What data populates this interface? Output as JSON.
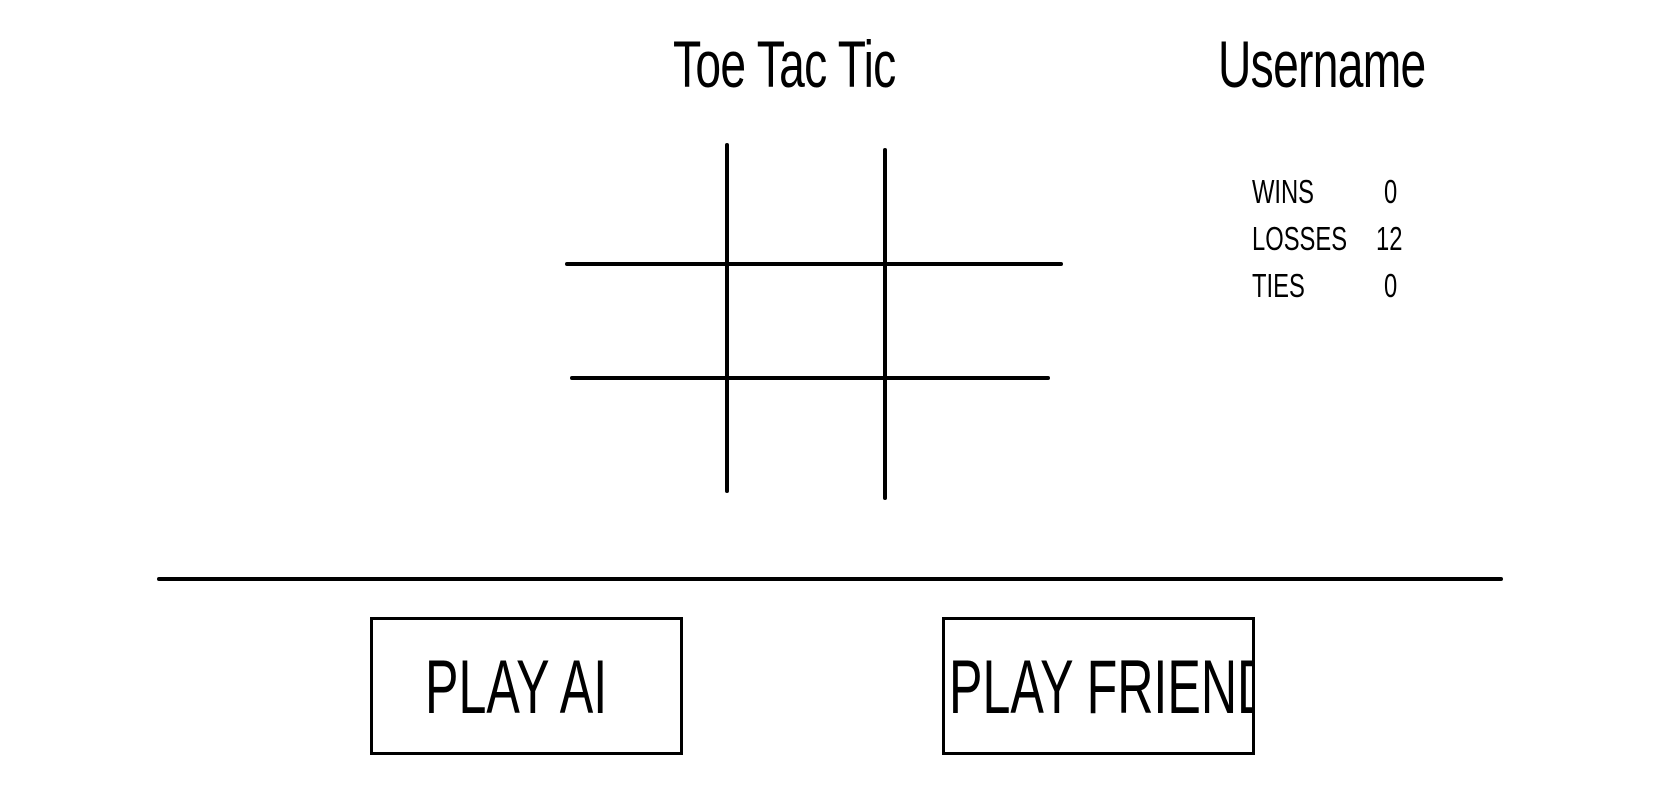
{
  "game": {
    "title": "Toe Tac Tic",
    "username": "Username"
  },
  "stats": [
    {
      "label": "WINS",
      "value": "0"
    },
    {
      "label": "LOSSES",
      "value": "12"
    },
    {
      "label": "TIES",
      "value": "0"
    }
  ],
  "board": {
    "cells": [
      "",
      "",
      "",
      "",
      "",
      "",
      "",
      "",
      ""
    ]
  },
  "buttons": {
    "play_ai": "PLAY AI",
    "play_friend": "PLAY FRIEND"
  },
  "colors": {
    "ink": "#000000",
    "background": "#ffffff"
  }
}
